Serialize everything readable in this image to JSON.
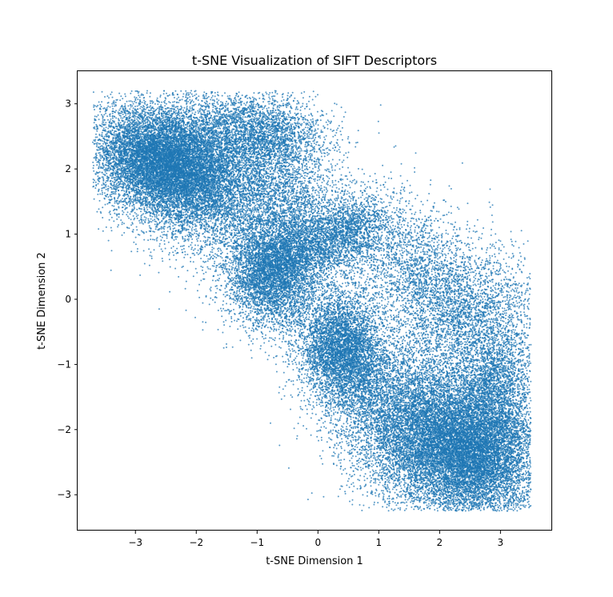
{
  "chart_data": {
    "type": "scatter",
    "title": "t-SNE Visualization of SIFT Descriptors",
    "xlabel": "t-SNE Dimension 1",
    "ylabel": "t-SNE Dimension 2",
    "xlim": [
      -3.95,
      3.85
    ],
    "ylim": [
      -3.55,
      3.5
    ],
    "xticks": [
      -3,
      -2,
      -1,
      0,
      1,
      2,
      3
    ],
    "xtick_labels": [
      "−3",
      "−2",
      "−1",
      "0",
      "1",
      "2",
      "3"
    ],
    "yticks": [
      -3,
      -2,
      -1,
      0,
      1,
      2,
      3
    ],
    "ytick_labels": [
      "−3",
      "−2",
      "−1",
      "0",
      "1",
      "2",
      "3"
    ],
    "grid": false,
    "legend": false,
    "color": "#1f77b4",
    "marker_opacity": 0.75,
    "clusters": [
      {
        "cx": -2.6,
        "cy": 2.1,
        "sx": 0.55,
        "sy": 0.4,
        "rot": -0.35,
        "n": 9000
      },
      {
        "cx": -1.8,
        "cy": 1.9,
        "sx": 0.65,
        "sy": 0.55,
        "rot": -0.5,
        "n": 6000
      },
      {
        "cx": -0.9,
        "cy": 2.6,
        "sx": 0.55,
        "sy": 0.28,
        "rot": -0.15,
        "n": 2200
      },
      {
        "cx": -0.6,
        "cy": 1.7,
        "sx": 0.5,
        "sy": 0.45,
        "rot": -0.7,
        "n": 1500
      },
      {
        "cx": -0.75,
        "cy": 0.45,
        "sx": 0.38,
        "sy": 0.45,
        "rot": 0.0,
        "n": 5000
      },
      {
        "cx": -0.1,
        "cy": 0.85,
        "sx": 0.45,
        "sy": 0.3,
        "rot": 0.6,
        "n": 1800
      },
      {
        "cx": 0.55,
        "cy": 1.0,
        "sx": 0.35,
        "sy": 0.25,
        "rot": 0.6,
        "n": 1200
      },
      {
        "cx": 0.4,
        "cy": -0.75,
        "sx": 0.35,
        "sy": 0.45,
        "rot": 0.3,
        "n": 5000
      },
      {
        "cx": 1.6,
        "cy": 0.4,
        "sx": 0.75,
        "sy": 0.45,
        "rot": -0.75,
        "n": 2500
      },
      {
        "cx": 2.5,
        "cy": -0.3,
        "sx": 0.55,
        "sy": 0.6,
        "rot": -0.9,
        "n": 2200
      },
      {
        "cx": 1.7,
        "cy": -2.0,
        "sx": 0.75,
        "sy": 0.55,
        "rot": -0.6,
        "n": 9000
      },
      {
        "cx": 2.6,
        "cy": -2.4,
        "sx": 0.55,
        "sy": 0.5,
        "rot": -0.4,
        "n": 7000
      },
      {
        "cx": 2.9,
        "cy": -1.4,
        "sx": 0.35,
        "sy": 0.55,
        "rot": -0.1,
        "n": 2500
      }
    ]
  }
}
